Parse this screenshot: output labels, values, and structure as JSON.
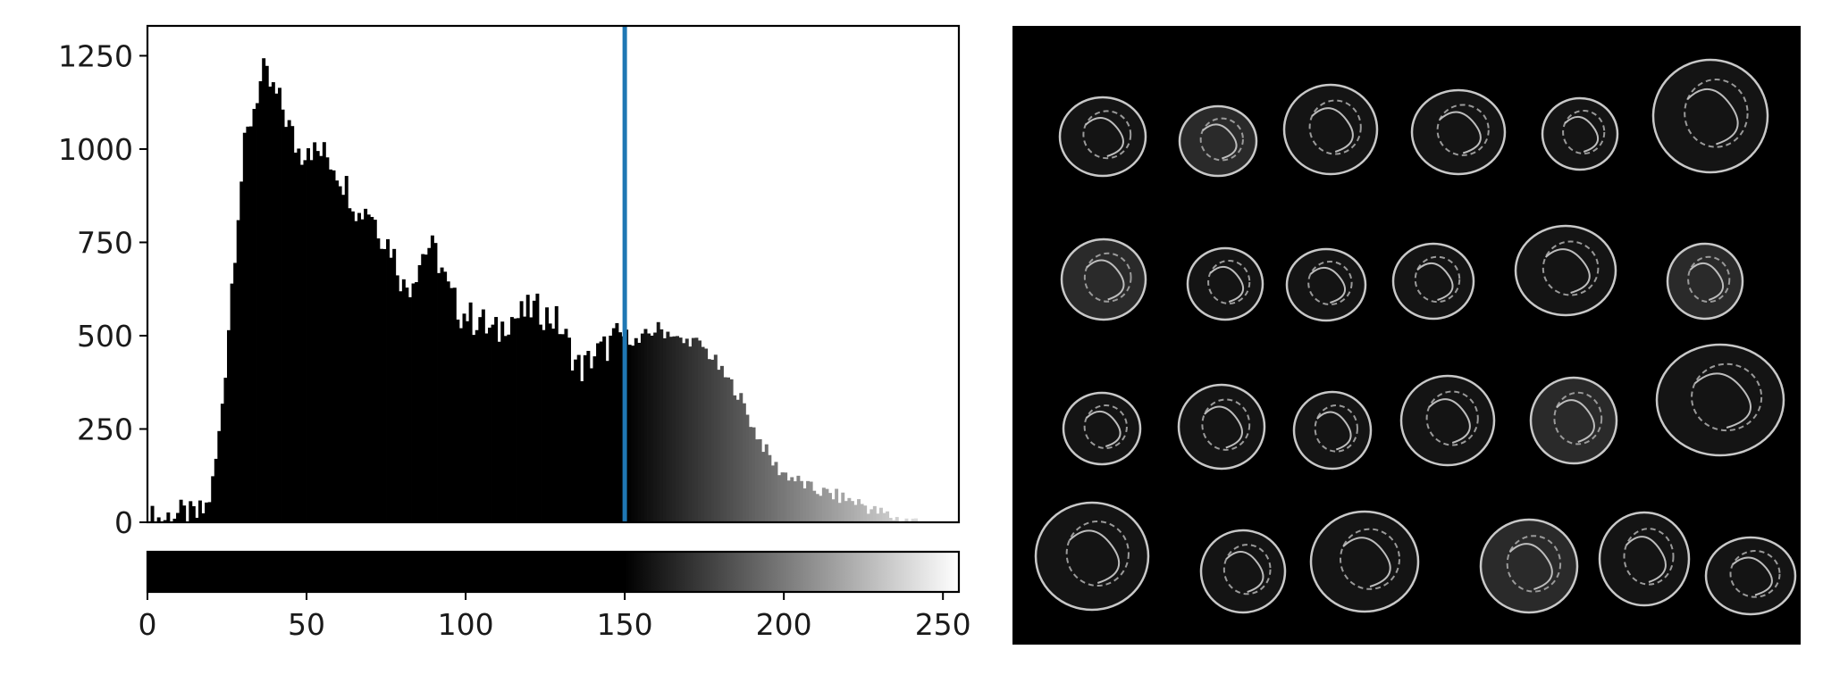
{
  "chart_data": [
    {
      "type": "bar",
      "title": "",
      "xlabel": "",
      "ylabel": "",
      "xlim": [
        0,
        255
      ],
      "ylim": [
        0,
        1330
      ],
      "y_ticks": [
        0,
        250,
        500,
        750,
        1000,
        1250
      ],
      "x_ticks": [
        0,
        50,
        100,
        150,
        200,
        250
      ],
      "threshold": 150,
      "threshold_color": "#1f77b4",
      "bar_color_below_threshold": "#000000",
      "bar_color_above_threshold": "grayscale by intensity",
      "grid": false,
      "colorbar": {
        "type": "gradient",
        "range": [
          0,
          255
        ],
        "black_below": 150
      },
      "points": [
        [
          0,
          5
        ],
        [
          5,
          10
        ],
        [
          8,
          25
        ],
        [
          10,
          18
        ],
        [
          13,
          12
        ],
        [
          16,
          20
        ],
        [
          18,
          40
        ],
        [
          20,
          100
        ],
        [
          22,
          230
        ],
        [
          24,
          420
        ],
        [
          26,
          640
        ],
        [
          28,
          840
        ],
        [
          30,
          1000
        ],
        [
          32,
          1080
        ],
        [
          34,
          1150
        ],
        [
          36,
          1200
        ],
        [
          38,
          1170
        ],
        [
          40,
          1140
        ],
        [
          42,
          1110
        ],
        [
          44,
          1060
        ],
        [
          46,
          1010
        ],
        [
          48,
          990
        ],
        [
          50,
          1020
        ],
        [
          52,
          990
        ],
        [
          54,
          990
        ],
        [
          56,
          980
        ],
        [
          58,
          960
        ],
        [
          60,
          930
        ],
        [
          62,
          900
        ],
        [
          64,
          870
        ],
        [
          66,
          820
        ],
        [
          68,
          850
        ],
        [
          70,
          830
        ],
        [
          72,
          790
        ],
        [
          74,
          760
        ],
        [
          76,
          740
        ],
        [
          78,
          690
        ],
        [
          80,
          630
        ],
        [
          82,
          640
        ],
        [
          84,
          680
        ],
        [
          86,
          720
        ],
        [
          88,
          740
        ],
        [
          90,
          720
        ],
        [
          92,
          680
        ],
        [
          94,
          620
        ],
        [
          96,
          590
        ],
        [
          98,
          560
        ],
        [
          100,
          560
        ],
        [
          102,
          540
        ],
        [
          104,
          550
        ],
        [
          106,
          520
        ],
        [
          108,
          510
        ],
        [
          110,
          510
        ],
        [
          112,
          540
        ],
        [
          114,
          550
        ],
        [
          116,
          550
        ],
        [
          118,
          560
        ],
        [
          120,
          570
        ],
        [
          122,
          570
        ],
        [
          124,
          560
        ],
        [
          126,
          550
        ],
        [
          128,
          540
        ],
        [
          130,
          510
        ],
        [
          132,
          470
        ],
        [
          134,
          430
        ],
        [
          136,
          410
        ],
        [
          138,
          430
        ],
        [
          140,
          450
        ],
        [
          142,
          460
        ],
        [
          144,
          470
        ],
        [
          146,
          490
        ],
        [
          148,
          500
        ],
        [
          150,
          500
        ],
        [
          152,
          490
        ],
        [
          154,
          480
        ],
        [
          156,
          500
        ],
        [
          158,
          510
        ],
        [
          160,
          520
        ],
        [
          162,
          510
        ],
        [
          164,
          510
        ],
        [
          166,
          490
        ],
        [
          168,
          480
        ],
        [
          170,
          490
        ],
        [
          172,
          480
        ],
        [
          174,
          470
        ],
        [
          176,
          450
        ],
        [
          178,
          430
        ],
        [
          180,
          400
        ],
        [
          182,
          380
        ],
        [
          184,
          360
        ],
        [
          186,
          330
        ],
        [
          188,
          290
        ],
        [
          190,
          250
        ],
        [
          192,
          220
        ],
        [
          194,
          190
        ],
        [
          196,
          160
        ],
        [
          198,
          140
        ],
        [
          200,
          130
        ],
        [
          202,
          120
        ],
        [
          204,
          110
        ],
        [
          206,
          100
        ],
        [
          208,
          90
        ],
        [
          210,
          85
        ],
        [
          212,
          80
        ],
        [
          214,
          75
        ],
        [
          216,
          70
        ],
        [
          218,
          65
        ],
        [
          220,
          60
        ],
        [
          222,
          55
        ],
        [
          224,
          50
        ],
        [
          226,
          40
        ],
        [
          228,
          30
        ],
        [
          230,
          25
        ],
        [
          232,
          20
        ],
        [
          234,
          12
        ],
        [
          236,
          8
        ],
        [
          238,
          5
        ],
        [
          240,
          3
        ],
        [
          245,
          0
        ],
        [
          255,
          0
        ]
      ]
    }
  ]
}
